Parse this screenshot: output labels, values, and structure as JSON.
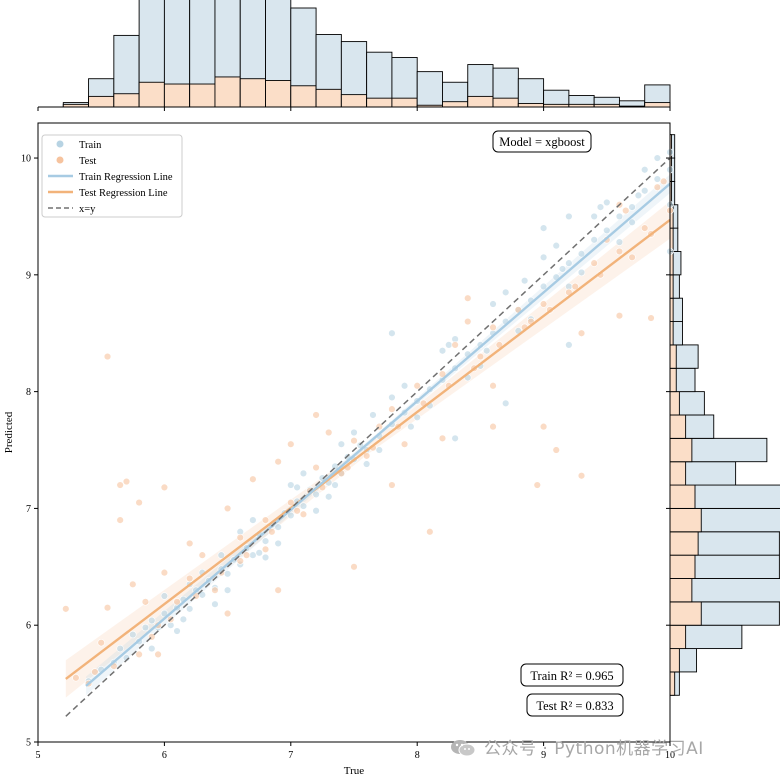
{
  "chart_data": {
    "type": "scatter",
    "xlabel": "True",
    "ylabel": "Predicted",
    "xlim": [
      5,
      10
    ],
    "ylim": [
      5,
      10.3
    ],
    "xticks": [
      "5",
      "6",
      "7",
      "8",
      "9",
      "10"
    ],
    "yticks": [
      "5",
      "6",
      "7",
      "8",
      "9",
      "10"
    ],
    "legend_position": "top-left",
    "model_label": "Model = xgboost",
    "train_r2_label": "Train R² = 0.965",
    "test_r2_label": "Test R² = 0.833",
    "train_r2": 0.965,
    "test_r2": 0.833,
    "legend": [
      "Train",
      "Test",
      "Train Regression Line",
      "Test Regression Line",
      "x=y"
    ],
    "colors": {
      "train": "#b7d3e3",
      "test": "#f6c39e",
      "train_line": "#a7cbe3",
      "test_line": "#f2b37a",
      "identity": "#707070",
      "hist_train": "#d9e6ee",
      "hist_test": "#fbdec8"
    },
    "train_regression_line": {
      "x": [
        5.38,
        10.0
      ],
      "y": [
        5.48,
        9.78
      ]
    },
    "test_regression_line": {
      "x": [
        5.22,
        10.0
      ],
      "y": [
        5.54,
        9.47
      ]
    },
    "identity_line": {
      "x": [
        5.22,
        10.0
      ],
      "y": [
        5.22,
        10.0
      ]
    },
    "train_points": [
      [
        5.4,
        5.52
      ],
      [
        5.5,
        5.62
      ],
      [
        5.6,
        5.68
      ],
      [
        5.65,
        5.8
      ],
      [
        5.7,
        5.72
      ],
      [
        5.75,
        5.92
      ],
      [
        5.8,
        5.86
      ],
      [
        5.85,
        5.98
      ],
      [
        5.9,
        6.04
      ],
      [
        5.95,
        5.98
      ],
      [
        6.0,
        6.1
      ],
      [
        6.05,
        6.0
      ],
      [
        6.1,
        6.15
      ],
      [
        6.15,
        6.22
      ],
      [
        6.2,
        6.14
      ],
      [
        6.25,
        6.3
      ],
      [
        6.3,
        6.26
      ],
      [
        6.35,
        6.38
      ],
      [
        6.4,
        6.32
      ],
      [
        6.45,
        6.48
      ],
      [
        6.5,
        6.44
      ],
      [
        6.55,
        6.56
      ],
      [
        6.6,
        6.52
      ],
      [
        6.65,
        6.66
      ],
      [
        6.7,
        6.6
      ],
      [
        6.75,
        6.78
      ],
      [
        6.8,
        6.72
      ],
      [
        6.85,
        6.86
      ],
      [
        6.9,
        6.84
      ],
      [
        6.95,
        6.96
      ],
      [
        7.0,
        6.94
      ],
      [
        7.05,
        7.06
      ],
      [
        7.1,
        7.02
      ],
      [
        7.15,
        7.16
      ],
      [
        7.2,
        7.12
      ],
      [
        7.25,
        7.26
      ],
      [
        7.3,
        7.22
      ],
      [
        7.35,
        7.36
      ],
      [
        7.4,
        7.3
      ],
      [
        7.45,
        7.44
      ],
      [
        7.5,
        7.42
      ],
      [
        7.55,
        7.54
      ],
      [
        7.6,
        7.5
      ],
      [
        7.7,
        7.62
      ],
      [
        7.8,
        7.72
      ],
      [
        7.9,
        7.82
      ],
      [
        8.0,
        7.92
      ],
      [
        8.1,
        8.02
      ],
      [
        8.2,
        8.1
      ],
      [
        8.3,
        8.2
      ],
      [
        8.4,
        8.32
      ],
      [
        8.5,
        8.4
      ],
      [
        8.6,
        8.5
      ],
      [
        8.7,
        8.6
      ],
      [
        8.8,
        8.7
      ],
      [
        8.9,
        8.78
      ],
      [
        9.0,
        8.9
      ],
      [
        9.1,
        8.98
      ],
      [
        9.2,
        9.1
      ],
      [
        9.3,
        9.18
      ],
      [
        9.4,
        9.3
      ],
      [
        9.5,
        9.38
      ],
      [
        9.6,
        9.5
      ],
      [
        9.7,
        9.58
      ],
      [
        9.8,
        9.72
      ],
      [
        9.9,
        9.82
      ],
      [
        10.0,
        9.9
      ],
      [
        10.0,
        10.05
      ],
      [
        10.0,
        9.6
      ],
      [
        10.0,
        9.2
      ],
      [
        6.2,
        6.35
      ],
      [
        6.4,
        6.18
      ],
      [
        6.6,
        6.8
      ],
      [
        6.8,
        6.58
      ],
      [
        7.0,
        7.2
      ],
      [
        7.2,
        6.98
      ],
      [
        7.4,
        7.55
      ],
      [
        7.6,
        7.38
      ],
      [
        7.8,
        7.95
      ],
      [
        8.0,
        7.78
      ],
      [
        8.2,
        8.35
      ],
      [
        8.4,
        8.12
      ],
      [
        8.6,
        8.75
      ],
      [
        8.8,
        8.52
      ],
      [
        9.0,
        9.15
      ],
      [
        9.2,
        8.9
      ],
      [
        9.4,
        9.5
      ],
      [
        9.6,
        9.28
      ],
      [
        9.8,
        9.9
      ],
      [
        5.9,
        5.8
      ],
      [
        6.0,
        6.25
      ],
      [
        6.1,
        5.95
      ],
      [
        6.3,
        6.45
      ],
      [
        6.5,
        6.3
      ],
      [
        6.7,
        6.9
      ],
      [
        6.9,
        6.7
      ],
      [
        7.1,
        7.3
      ],
      [
        7.3,
        7.1
      ],
      [
        7.5,
        7.65
      ],
      [
        7.7,
        7.5
      ],
      [
        7.9,
        8.05
      ],
      [
        8.1,
        7.88
      ],
      [
        8.3,
        8.45
      ],
      [
        8.5,
        8.22
      ],
      [
        8.7,
        8.85
      ],
      [
        8.9,
        8.62
      ],
      [
        9.1,
        9.25
      ],
      [
        9.3,
        9.02
      ],
      [
        9.5,
        9.62
      ],
      [
        9.7,
        9.45
      ],
      [
        9.9,
        10.0
      ],
      [
        6.15,
        6.05
      ],
      [
        6.45,
        6.6
      ],
      [
        6.75,
        6.62
      ],
      [
        7.05,
        7.18
      ],
      [
        7.35,
        7.2
      ],
      [
        7.65,
        7.8
      ],
      [
        7.95,
        7.7
      ],
      [
        8.25,
        8.4
      ],
      [
        8.55,
        8.35
      ],
      [
        8.85,
        8.95
      ],
      [
        9.15,
        9.05
      ],
      [
        9.45,
        9.58
      ],
      [
        9.75,
        9.68
      ],
      [
        8.3,
        7.6
      ],
      [
        8.7,
        7.9
      ],
      [
        9.2,
        8.4
      ],
      [
        9.0,
        9.4
      ],
      [
        9.2,
        9.5
      ],
      [
        7.8,
        8.5
      ]
    ],
    "test_points": [
      [
        5.22,
        6.14
      ],
      [
        5.55,
        8.3
      ],
      [
        5.65,
        7.2
      ],
      [
        5.7,
        7.23
      ],
      [
        5.8,
        7.05
      ],
      [
        5.65,
        6.9
      ],
      [
        5.55,
        6.15
      ],
      [
        5.45,
        5.6
      ],
      [
        5.5,
        5.85
      ],
      [
        5.75,
        6.35
      ],
      [
        5.85,
        6.2
      ],
      [
        5.95,
        6.0
      ],
      [
        6.0,
        6.45
      ],
      [
        6.0,
        7.18
      ],
      [
        6.2,
        6.4
      ],
      [
        6.3,
        6.6
      ],
      [
        6.5,
        7.0
      ],
      [
        6.5,
        6.1
      ],
      [
        6.7,
        7.25
      ],
      [
        6.6,
        6.75
      ],
      [
        6.8,
        6.9
      ],
      [
        6.9,
        7.4
      ],
      [
        7.0,
        7.55
      ],
      [
        7.1,
        6.95
      ],
      [
        7.2,
        7.35
      ],
      [
        7.3,
        7.65
      ],
      [
        7.4,
        7.3
      ],
      [
        7.5,
        7.58
      ],
      [
        7.6,
        7.45
      ],
      [
        7.7,
        7.7
      ],
      [
        7.8,
        7.85
      ],
      [
        8.0,
        8.05
      ],
      [
        8.2,
        8.15
      ],
      [
        8.3,
        8.4
      ],
      [
        8.5,
        8.3
      ],
      [
        8.6,
        8.55
      ],
      [
        8.8,
        8.7
      ],
      [
        8.9,
        8.6
      ],
      [
        9.0,
        8.75
      ],
      [
        9.2,
        8.85
      ],
      [
        9.4,
        9.1
      ],
      [
        9.5,
        9.3
      ],
      [
        9.6,
        8.65
      ],
      [
        9.7,
        9.15
      ],
      [
        9.8,
        9.4
      ],
      [
        9.85,
        8.63
      ],
      [
        9.9,
        9.75
      ],
      [
        10.0,
        9.55
      ],
      [
        9.65,
        9.55
      ],
      [
        9.3,
        8.5
      ],
      [
        9.0,
        7.7
      ],
      [
        9.1,
        7.5
      ],
      [
        8.95,
        7.2
      ],
      [
        9.3,
        7.28
      ],
      [
        8.6,
        7.7
      ],
      [
        8.1,
        6.8
      ],
      [
        7.5,
        6.5
      ],
      [
        6.2,
        6.7
      ],
      [
        6.9,
        6.3
      ],
      [
        7.2,
        7.8
      ],
      [
        7.9,
        7.55
      ],
      [
        8.4,
        8.6
      ],
      [
        8.6,
        8.05
      ],
      [
        5.95,
        5.75
      ],
      [
        6.1,
        6.2
      ],
      [
        6.4,
        6.3
      ],
      [
        6.6,
        6.55
      ],
      [
        6.8,
        6.65
      ],
      [
        7.0,
        7.05
      ],
      [
        7.15,
        7.15
      ],
      [
        5.9,
        5.9
      ],
      [
        6.05,
        6.05
      ],
      [
        6.25,
        6.25
      ],
      [
        6.45,
        6.45
      ],
      [
        6.65,
        6.6
      ],
      [
        6.85,
        6.8
      ],
      [
        7.05,
        6.98
      ],
      [
        7.25,
        7.18
      ],
      [
        7.45,
        7.35
      ],
      [
        7.65,
        7.52
      ],
      [
        7.85,
        7.7
      ],
      [
        8.05,
        7.9
      ],
      [
        8.25,
        8.05
      ],
      [
        8.45,
        8.2
      ],
      [
        8.65,
        8.4
      ],
      [
        8.85,
        8.55
      ],
      [
        9.05,
        8.7
      ],
      [
        9.25,
        8.9
      ],
      [
        9.45,
        9.0
      ],
      [
        9.6,
        9.2
      ],
      [
        5.3,
        5.55
      ],
      [
        5.4,
        5.5
      ],
      [
        5.6,
        5.65
      ],
      [
        5.8,
        5.75
      ],
      [
        7.8,
        7.2
      ],
      [
        8.2,
        7.6
      ],
      [
        9.6,
        9.6
      ],
      [
        9.85,
        9.35
      ],
      [
        9.95,
        9.8
      ],
      [
        8.4,
        8.8
      ]
    ],
    "top_histogram": {
      "bin_start": 5.2,
      "bin_width": 0.2,
      "train_counts": [
        2,
        20,
        66,
        112,
        106,
        100,
        98,
        102,
        108,
        88,
        62,
        60,
        52,
        46,
        38,
        22,
        36,
        34,
        28,
        16,
        10,
        8,
        6,
        20
      ],
      "test_counts": [
        3,
        12,
        15,
        28,
        26,
        26,
        34,
        32,
        30,
        24,
        20,
        14,
        10,
        10,
        2,
        6,
        12,
        10,
        4,
        3,
        3,
        3,
        1,
        5
      ]
    },
    "right_histogram": {
      "bin_start": 5.4,
      "bin_width": 0.2,
      "train_counts": [
        3,
        11,
        36,
        50,
        64,
        54,
        52,
        56,
        56,
        32,
        48,
        18,
        16,
        12,
        14,
        6,
        6,
        4,
        5,
        3,
        3,
        2,
        2,
        2
      ],
      "test_counts": [
        3,
        6,
        10,
        20,
        14,
        16,
        18,
        20,
        16,
        10,
        14,
        10,
        6,
        4,
        4,
        2,
        2,
        2,
        2,
        2,
        2,
        1,
        1,
        1
      ]
    }
  },
  "watermark": {
    "text": "公众号 · Python机器学习AI"
  }
}
